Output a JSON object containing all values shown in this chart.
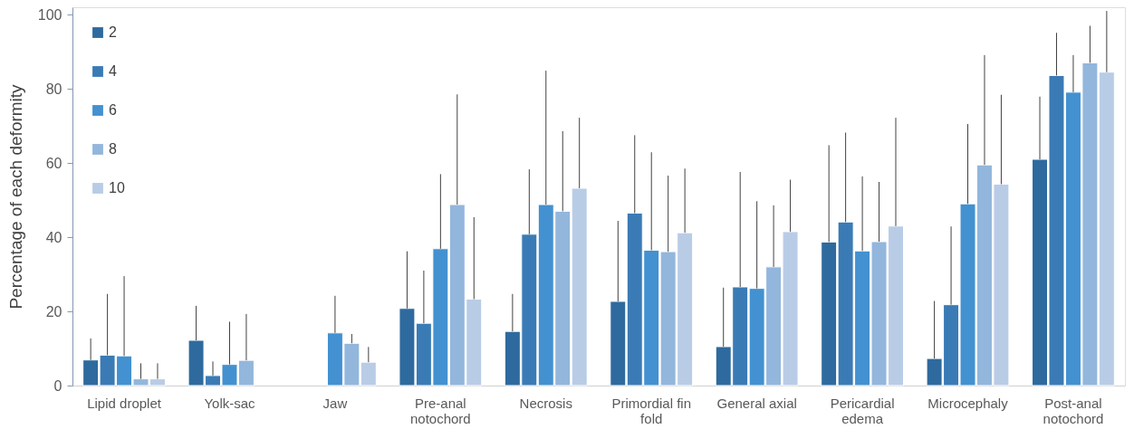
{
  "chart_data": {
    "type": "bar",
    "ylabel": "Percentage of each deformity",
    "categories": [
      "Lipid droplet",
      "Yolk-sac",
      "Jaw",
      "Pre-anal notochord",
      "Necrosis",
      "Primordial fin fold",
      "General axial",
      "Pericardial edema",
      "Microcephaly",
      "Post-anal notochord"
    ],
    "series": [
      {
        "name": "2",
        "color": "#2e6a9e",
        "values": [
          6.9,
          12.2,
          null,
          20.8,
          14.6,
          22.7,
          10.5,
          38.7,
          7.3,
          61.0
        ],
        "errors": [
          [
            6.9,
            12.7
          ],
          [
            12.2,
            21.5
          ],
          null,
          [
            20.8,
            36.2
          ],
          [
            14.6,
            24.7
          ],
          [
            22.7,
            44.4
          ],
          [
            10.5,
            26.4
          ],
          [
            38.7,
            64.8
          ],
          [
            7.3,
            22.8
          ],
          [
            61.0,
            77.9
          ]
        ]
      },
      {
        "name": "4",
        "color": "#3a7bb5",
        "values": [
          8.2,
          2.7,
          null,
          16.8,
          40.8,
          46.5,
          26.6,
          44.1,
          21.8,
          83.6
        ],
        "errors": [
          [
            8.2,
            24.7
          ],
          [
            2.7,
            6.5
          ],
          null,
          [
            16.8,
            31.0
          ],
          [
            40.8,
            58.3
          ],
          [
            46.5,
            67.5
          ],
          [
            26.6,
            57.6
          ],
          [
            44.1,
            68.2
          ],
          [
            21.8,
            42.9
          ],
          [
            83.6,
            95.1
          ]
        ]
      },
      {
        "name": "6",
        "color": "#4391d0",
        "values": [
          8.0,
          5.7,
          14.2,
          36.9,
          48.8,
          36.5,
          26.2,
          36.3,
          49.0,
          79.1
        ],
        "errors": [
          [
            8.0,
            29.5
          ],
          [
            5.7,
            17.2
          ],
          [
            14.2,
            24.2
          ],
          [
            36.9,
            57.0
          ],
          [
            48.8,
            84.9
          ],
          [
            36.5,
            62.9
          ],
          [
            26.2,
            49.7
          ],
          [
            36.3,
            56.4
          ],
          [
            49.0,
            70.5
          ],
          [
            79.1,
            89.1
          ]
        ]
      },
      {
        "name": "8",
        "color": "#93b6dc",
        "values": [
          1.8,
          6.8,
          11.4,
          48.8,
          47.0,
          36.1,
          32.0,
          38.8,
          59.5,
          87.0
        ],
        "errors": [
          [
            1.8,
            6.0
          ],
          [
            6.8,
            19.3
          ],
          [
            11.4,
            13.9
          ],
          [
            48.8,
            78.5
          ],
          [
            47.0,
            68.6
          ],
          [
            36.1,
            56.6
          ],
          [
            32.0,
            48.6
          ],
          [
            38.8,
            54.9
          ],
          [
            59.5,
            89.1
          ],
          [
            87.0,
            97.0
          ]
        ]
      },
      {
        "name": "10",
        "color": "#b9cce6",
        "values": [
          1.8,
          null,
          6.3,
          23.3,
          53.2,
          41.2,
          41.5,
          43.0,
          54.3,
          84.5
        ],
        "errors": [
          [
            1.8,
            6.0
          ],
          null,
          [
            6.3,
            10.4
          ],
          [
            23.3,
            45.4
          ],
          [
            53.2,
            72.2
          ],
          [
            41.2,
            58.5
          ],
          [
            41.5,
            55.5
          ],
          [
            43.0,
            72.2
          ],
          [
            54.3,
            78.4
          ],
          [
            84.5,
            101.0
          ]
        ]
      }
    ],
    "ylim": [
      0,
      102
    ],
    "yticks": [
      0,
      20,
      40,
      60,
      80,
      100
    ],
    "grid": false,
    "legend": "top left"
  }
}
